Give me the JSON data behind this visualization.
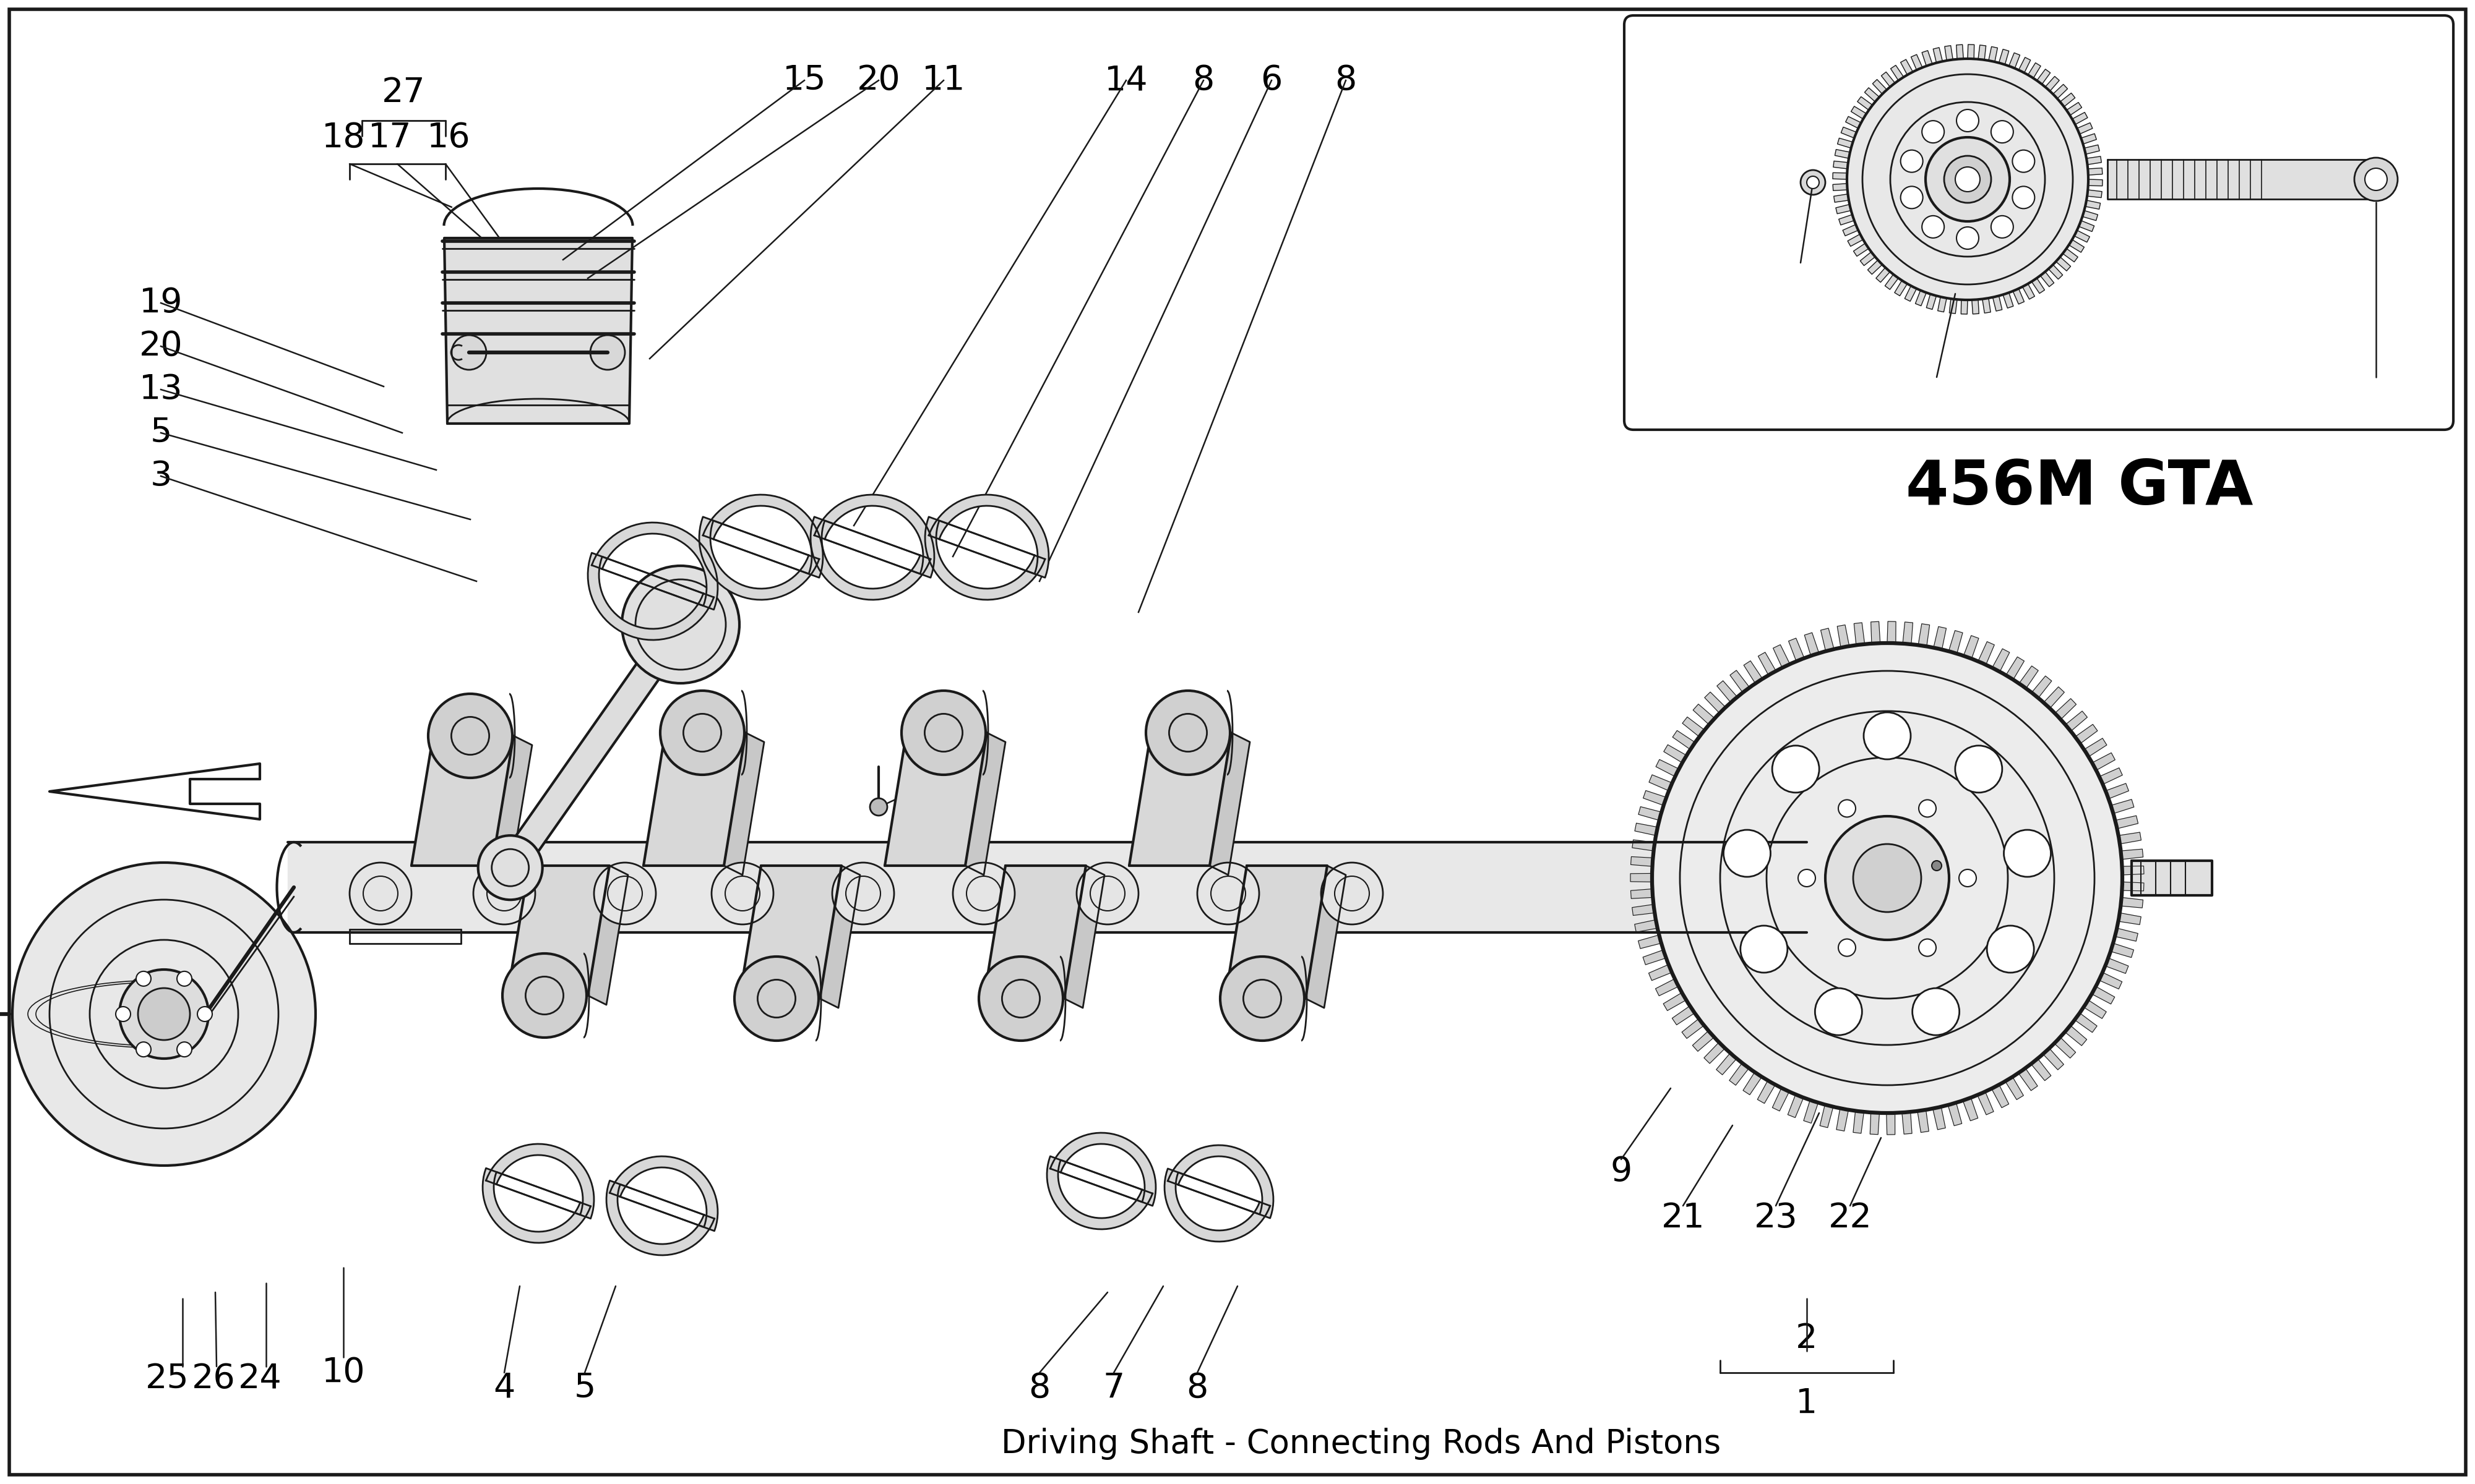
{
  "title": "Driving Shaft - Connecting Rods And Pistons",
  "bg_color": "#ffffff",
  "line_color": "#1a1a1a",
  "inset_label": "456M GTA",
  "font_size_label": 40,
  "font_size_inset_title": 72,
  "border_lw": 4
}
